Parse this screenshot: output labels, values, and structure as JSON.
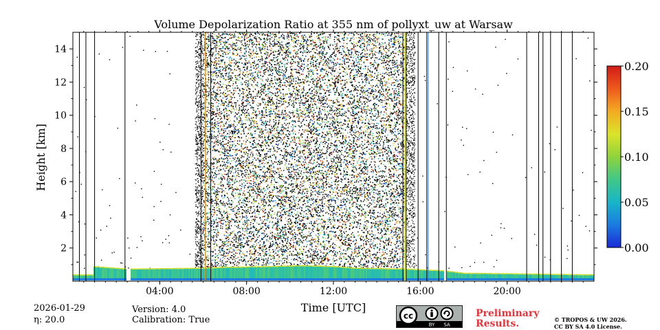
{
  "chart_data": {
    "type": "heatmap",
    "title": "Volume Depolarization Ratio at 355 nm of pollyxt_uw at Warsaw",
    "xlabel": "Time [UTC]",
    "ylabel": "Height [km]",
    "xlim_hours": [
      0,
      24
    ],
    "ylim": [
      0,
      15
    ],
    "x_ticks": [
      {
        "hour": 4,
        "label": "04:00"
      },
      {
        "hour": 8,
        "label": "08:00"
      },
      {
        "hour": 12,
        "label": "12:00"
      },
      {
        "hour": 16,
        "label": "16:00"
      },
      {
        "hour": 20,
        "label": "20:00"
      }
    ],
    "y_ticks": [
      2,
      4,
      6,
      8,
      10,
      12,
      14
    ],
    "y_tick_labels": [
      "2",
      "4",
      "6",
      "8",
      "10",
      "12",
      "14"
    ],
    "colorbar": {
      "min": 0.0,
      "max": 0.2,
      "ticks": [
        0.0,
        0.05,
        0.1,
        0.15,
        0.2
      ],
      "tick_labels": [
        "0.00",
        "0.05",
        "0.10",
        "0.15",
        "0.20"
      ],
      "colormap": [
        "#1a2bd6",
        "#1b7be0",
        "#17b6c8",
        "#41c888",
        "#8fd33c",
        "#dbe32a",
        "#f3ab22",
        "#ee5a1d",
        "#d11b17"
      ]
    },
    "noisy_period_hours": [
      6.0,
      15.3
    ],
    "boundary_layer_top_km": [
      {
        "hour": 0.9,
        "km": 0.85
      },
      {
        "hour": 2.5,
        "km": 0.7
      },
      {
        "hour": 5.8,
        "km": 0.75
      },
      {
        "hour": 7.0,
        "km": 0.8
      },
      {
        "hour": 9.0,
        "km": 0.85
      },
      {
        "hour": 10.5,
        "km": 0.9
      },
      {
        "hour": 12.0,
        "km": 0.85
      },
      {
        "hour": 13.0,
        "km": 0.75
      },
      {
        "hour": 15.3,
        "km": 0.7
      },
      {
        "hour": 17.0,
        "km": 0.6
      },
      {
        "hour": 18.0,
        "km": 0.45
      },
      {
        "hour": 24.0,
        "km": 0.35
      }
    ],
    "gap_lines_hours": [
      0.3,
      0.6,
      1.0,
      2.4,
      5.9,
      6.1,
      6.35,
      15.2,
      15.35,
      15.9,
      16.3,
      16.85,
      17.2,
      20.9,
      21.45,
      21.65,
      22.0,
      22.5,
      23.0
    ]
  },
  "footer": {
    "date": "2026-01-29",
    "eta": "20.0",
    "eta_label": "η: ",
    "version": "Version: 4.0",
    "calibration": "Calibration: True",
    "preliminary_line1": "Preliminary",
    "preliminary_line2": "Results.",
    "license_line1": "© TROPOS & UW 2026.",
    "license_line2": "CC BY SA 4.0 License.",
    "cc_badge": {
      "cc": "cc",
      "by": "BY",
      "sa": "SA"
    }
  }
}
